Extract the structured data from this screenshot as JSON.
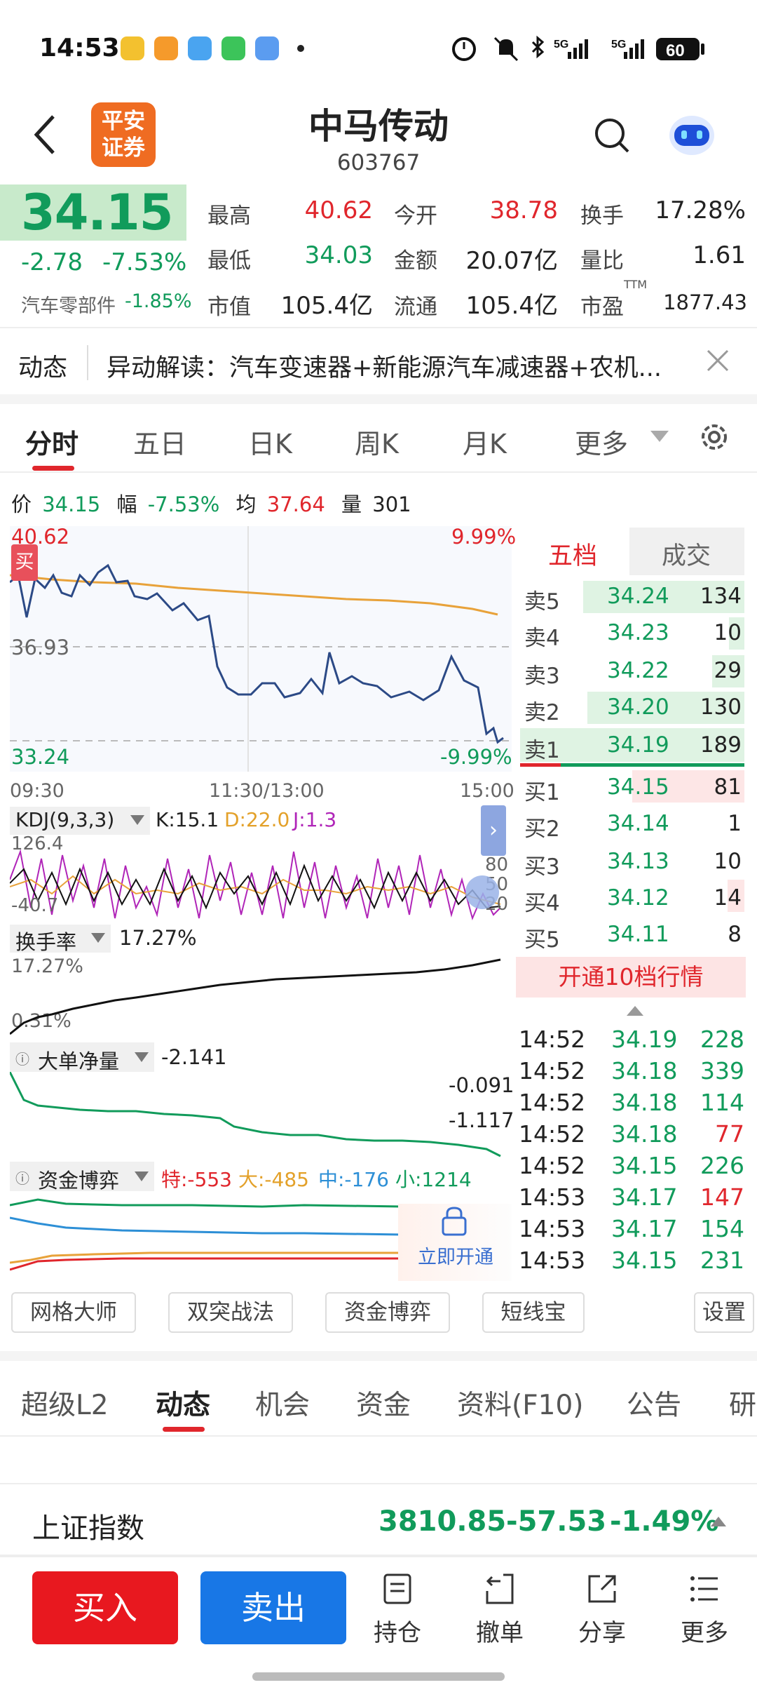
{
  "status_bar": {
    "time": "14:53",
    "battery": "60",
    "net1": "5G",
    "net2": "5G"
  },
  "header": {
    "broker_logo": "平安证券",
    "stock_name": "中马传动",
    "stock_code": "603767"
  },
  "quote": {
    "price": "34.15",
    "change": "-2.78",
    "change_pct": "-7.53%",
    "sector_name": "汽车零部件",
    "sector_pct": "-1.85%",
    "items": [
      {
        "label": "最高",
        "value": "40.62",
        "color": "red"
      },
      {
        "label": "今开",
        "value": "38.78",
        "color": "red"
      },
      {
        "label": "换手",
        "value": "17.28%",
        "color": "dark"
      },
      {
        "label": "最低",
        "value": "34.03",
        "color": "green"
      },
      {
        "label": "金额",
        "value": "20.07亿",
        "color": "dark"
      },
      {
        "label": "量比",
        "value": "1.61",
        "color": "dark"
      },
      {
        "label": "市值",
        "value": "105.4亿",
        "color": "dark"
      },
      {
        "label": "流通",
        "value": "105.4亿",
        "color": "dark"
      },
      {
        "label": "市盈",
        "value": "1877.43",
        "color": "dark",
        "sup": "TTM"
      }
    ]
  },
  "news": {
    "label": "动态",
    "text": "异动解读：汽车变速器+新能源汽车减速器+农机..."
  },
  "chart_tabs": [
    "分时",
    "五日",
    "日K",
    "周K",
    "月K",
    "更多"
  ],
  "chart_info": {
    "price_label": "价",
    "price": "34.15",
    "amp_label": "幅",
    "amp": "-7.53%",
    "avg_label": "均",
    "avg": "37.64",
    "vol_label": "量",
    "vol": "301"
  },
  "intraday": {
    "high": "40.62",
    "mid": "36.93",
    "low": "33.24",
    "high_pct": "9.99%",
    "low_pct": "-9.99%",
    "buy_marker": "买",
    "time_start": "09:30",
    "time_mid": "11:30/13:00",
    "time_end": "15:00"
  },
  "kdj": {
    "name": "KDJ(9,3,3)",
    "k": "K:15.1",
    "d": "D:22.0",
    "j": "J:1.3",
    "top": "126.4",
    "bottom": "-40.7",
    "r80": "80",
    "r50": "50",
    "r20": "20"
  },
  "turnover": {
    "name": "换手率",
    "value": "17.27%",
    "top": "17.27%",
    "bottom": "0.31%"
  },
  "bignet": {
    "name": "大单净量",
    "value": "-2.141",
    "top": "-0.091",
    "bottom": "-1.117"
  },
  "fund": {
    "name": "资金博弈",
    "te": "特:-553",
    "da": "大:-485",
    "zhong": "中:-176",
    "xiao": "小:1214",
    "unlock": "立即开通"
  },
  "order_book": {
    "tab_five": "五档",
    "tab_deal": "成交",
    "asks": [
      {
        "label": "卖5",
        "price": "34.24",
        "vol": "134"
      },
      {
        "label": "卖4",
        "price": "34.23",
        "vol": "10"
      },
      {
        "label": "卖3",
        "price": "34.22",
        "vol": "29"
      },
      {
        "label": "卖2",
        "price": "34.20",
        "vol": "130"
      },
      {
        "label": "卖1",
        "price": "34.19",
        "vol": "189"
      }
    ],
    "bids": [
      {
        "label": "买1",
        "price": "34.15",
        "vol": "81"
      },
      {
        "label": "买2",
        "price": "34.14",
        "vol": "1"
      },
      {
        "label": "买3",
        "price": "34.13",
        "vol": "10"
      },
      {
        "label": "买4",
        "price": "34.12",
        "vol": "14"
      },
      {
        "label": "买5",
        "price": "34.11",
        "vol": "8"
      }
    ],
    "open10": "开通10档行情"
  },
  "ticks": [
    {
      "time": "14:52",
      "price": "34.19",
      "vol": "228",
      "dir": "green"
    },
    {
      "time": "14:52",
      "price": "34.18",
      "vol": "339",
      "dir": "green"
    },
    {
      "time": "14:52",
      "price": "34.18",
      "vol": "114",
      "dir": "green"
    },
    {
      "time": "14:52",
      "price": "34.18",
      "vol": "77",
      "dir": "red"
    },
    {
      "time": "14:52",
      "price": "34.15",
      "vol": "226",
      "dir": "green"
    },
    {
      "time": "14:53",
      "price": "34.17",
      "vol": "147",
      "dir": "red"
    },
    {
      "time": "14:53",
      "price": "34.17",
      "vol": "154",
      "dir": "green"
    },
    {
      "time": "14:53",
      "price": "34.15",
      "vol": "231",
      "dir": "green"
    }
  ],
  "tools": [
    "网格大师",
    "双突战法",
    "资金博弈",
    "短线宝",
    "设置"
  ],
  "bottom_tabs": [
    "超级L2",
    "动态",
    "机会",
    "资金",
    "资料(F10)",
    "公告",
    "研"
  ],
  "index_bar": {
    "name": "上证指数",
    "value": "3810.85",
    "change": "-57.53",
    "pct": "-1.49%"
  },
  "bottom_nav": {
    "buy": "买入",
    "sell": "卖出",
    "items": [
      "持仓",
      "撤单",
      "分享",
      "更多"
    ]
  },
  "colors": {
    "up": "#e0262c",
    "down": "#119b5b",
    "price_line": "#2c4a86",
    "avg_line": "#e8a23a",
    "buy_btn": "#e8181f",
    "sell_btn": "#1877e6"
  }
}
